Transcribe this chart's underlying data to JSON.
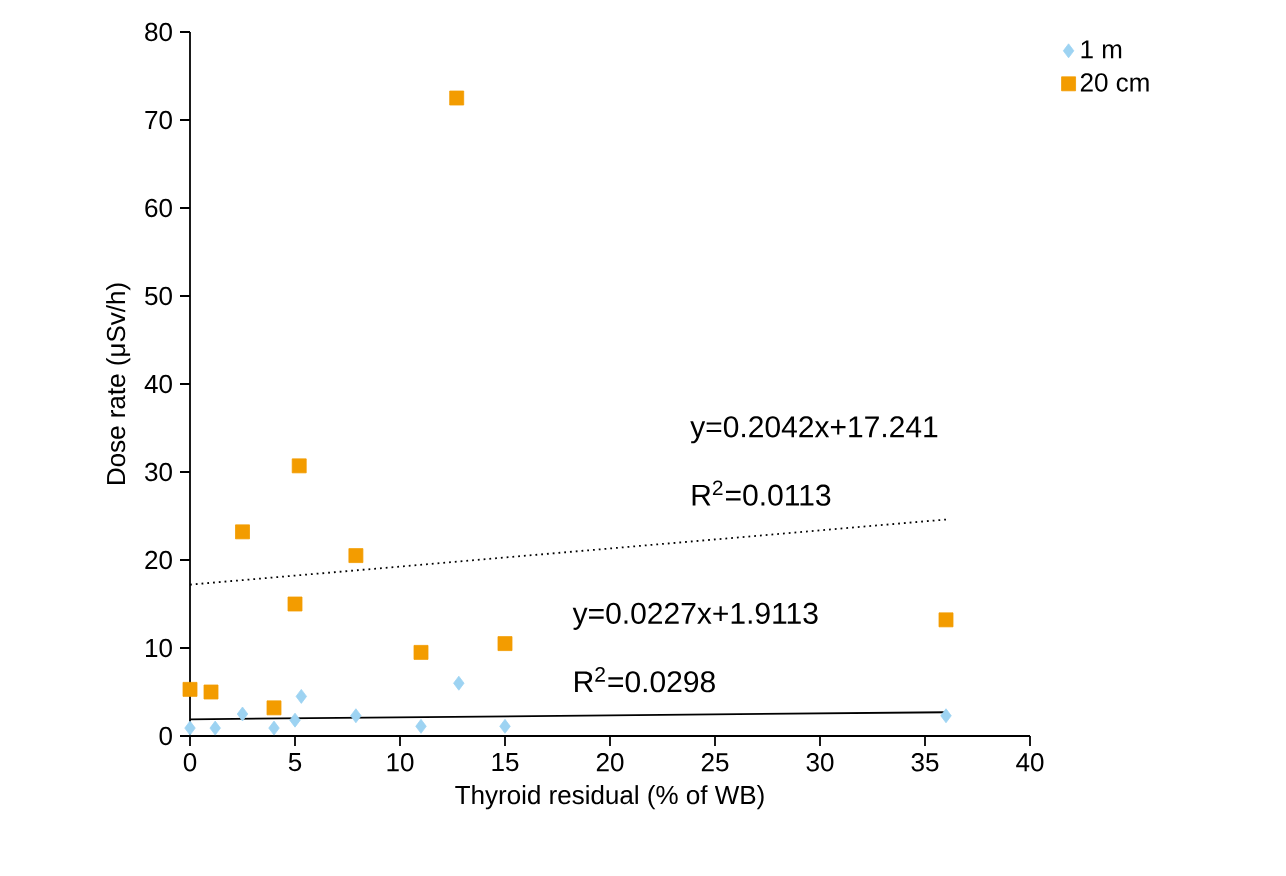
{
  "chart_data": {
    "type": "scatter",
    "xlabel": "Thyroid residual (% of WB)",
    "ylabel": "Dose rate (μSv/h)",
    "xlim": [
      0,
      40
    ],
    "ylim": [
      0,
      80
    ],
    "xticks": [
      0,
      5,
      10,
      15,
      20,
      25,
      30,
      35,
      40
    ],
    "yticks": [
      0,
      10,
      20,
      30,
      40,
      50,
      60,
      70,
      80
    ],
    "grid": false,
    "legend": "top right",
    "series": [
      {
        "name": "1 m",
        "color": "#9dd3f2",
        "marker": "diamond",
        "x": [
          0,
          1.2,
          2.5,
          4,
          5,
          5.3,
          7.9,
          11,
          12.8,
          15,
          36
        ],
        "values": [
          0.9,
          0.9,
          2.5,
          0.9,
          1.8,
          4.5,
          2.3,
          1.1,
          6,
          1.1,
          2.3
        ]
      },
      {
        "name": "20 cm",
        "color": "#f39c00",
        "marker": "square",
        "x": [
          0,
          1,
          2.5,
          4,
          5,
          5.2,
          7.9,
          11,
          12.7,
          15,
          36
        ],
        "values": [
          5.3,
          5,
          23.2,
          3.2,
          15,
          30.7,
          20.5,
          9.5,
          72.5,
          10.5,
          13.2
        ]
      },
      {
        "type": "line",
        "color": "#000000",
        "marker": "none",
        "line_style": "dotted",
        "x": [
          0,
          36
        ],
        "values": [
          17.2,
          24.6
        ]
      },
      {
        "type": "line",
        "color": "#000000",
        "marker": "none",
        "line_style": "solid",
        "x": [
          0,
          36
        ],
        "values": [
          1.9,
          2.7
        ]
      }
    ],
    "annotations": [
      "y=0.2042x+17.241",
      "R$^{2}$=0.0113",
      "y=0.0227x+1.9113",
      "R$^{2}$=0.0298"
    ]
  }
}
